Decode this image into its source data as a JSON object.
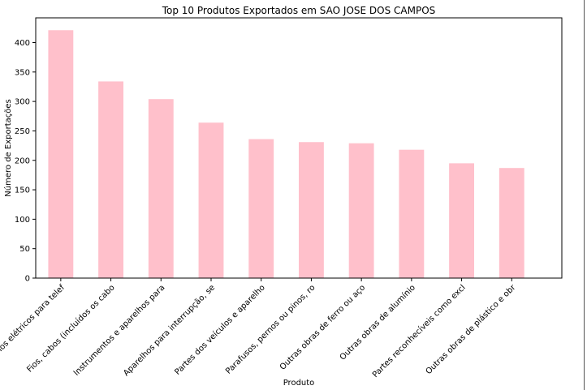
{
  "chart_data": {
    "type": "bar",
    "title": "Top 10 Produtos Exportados em SAO JOSE DOS CAMPOS",
    "xlabel": "Produto",
    "ylabel": "Número de Exportações",
    "categories": [
      "Aparelhos elétricos para telef",
      "Fios, cabos (incluídos os cabo",
      "Instrumentos e aparelhos para",
      "Aparelhos para interrupção, se",
      "Partes dos veículos e aparelho",
      "Parafusos, pernos ou pinos, ro",
      "Outras obras de ferro ou aço",
      "Outras obras de alumínio",
      "Partes reconhecíveis como excl",
      "Outras obras de plástico e obr"
    ],
    "values": [
      421,
      334,
      304,
      264,
      236,
      231,
      229,
      218,
      195,
      187
    ],
    "ylim": [
      0,
      442
    ],
    "yticks": [
      0,
      50,
      100,
      150,
      200,
      250,
      300,
      350,
      400
    ],
    "bar_color": "#ffc0cb",
    "grid": false
  }
}
